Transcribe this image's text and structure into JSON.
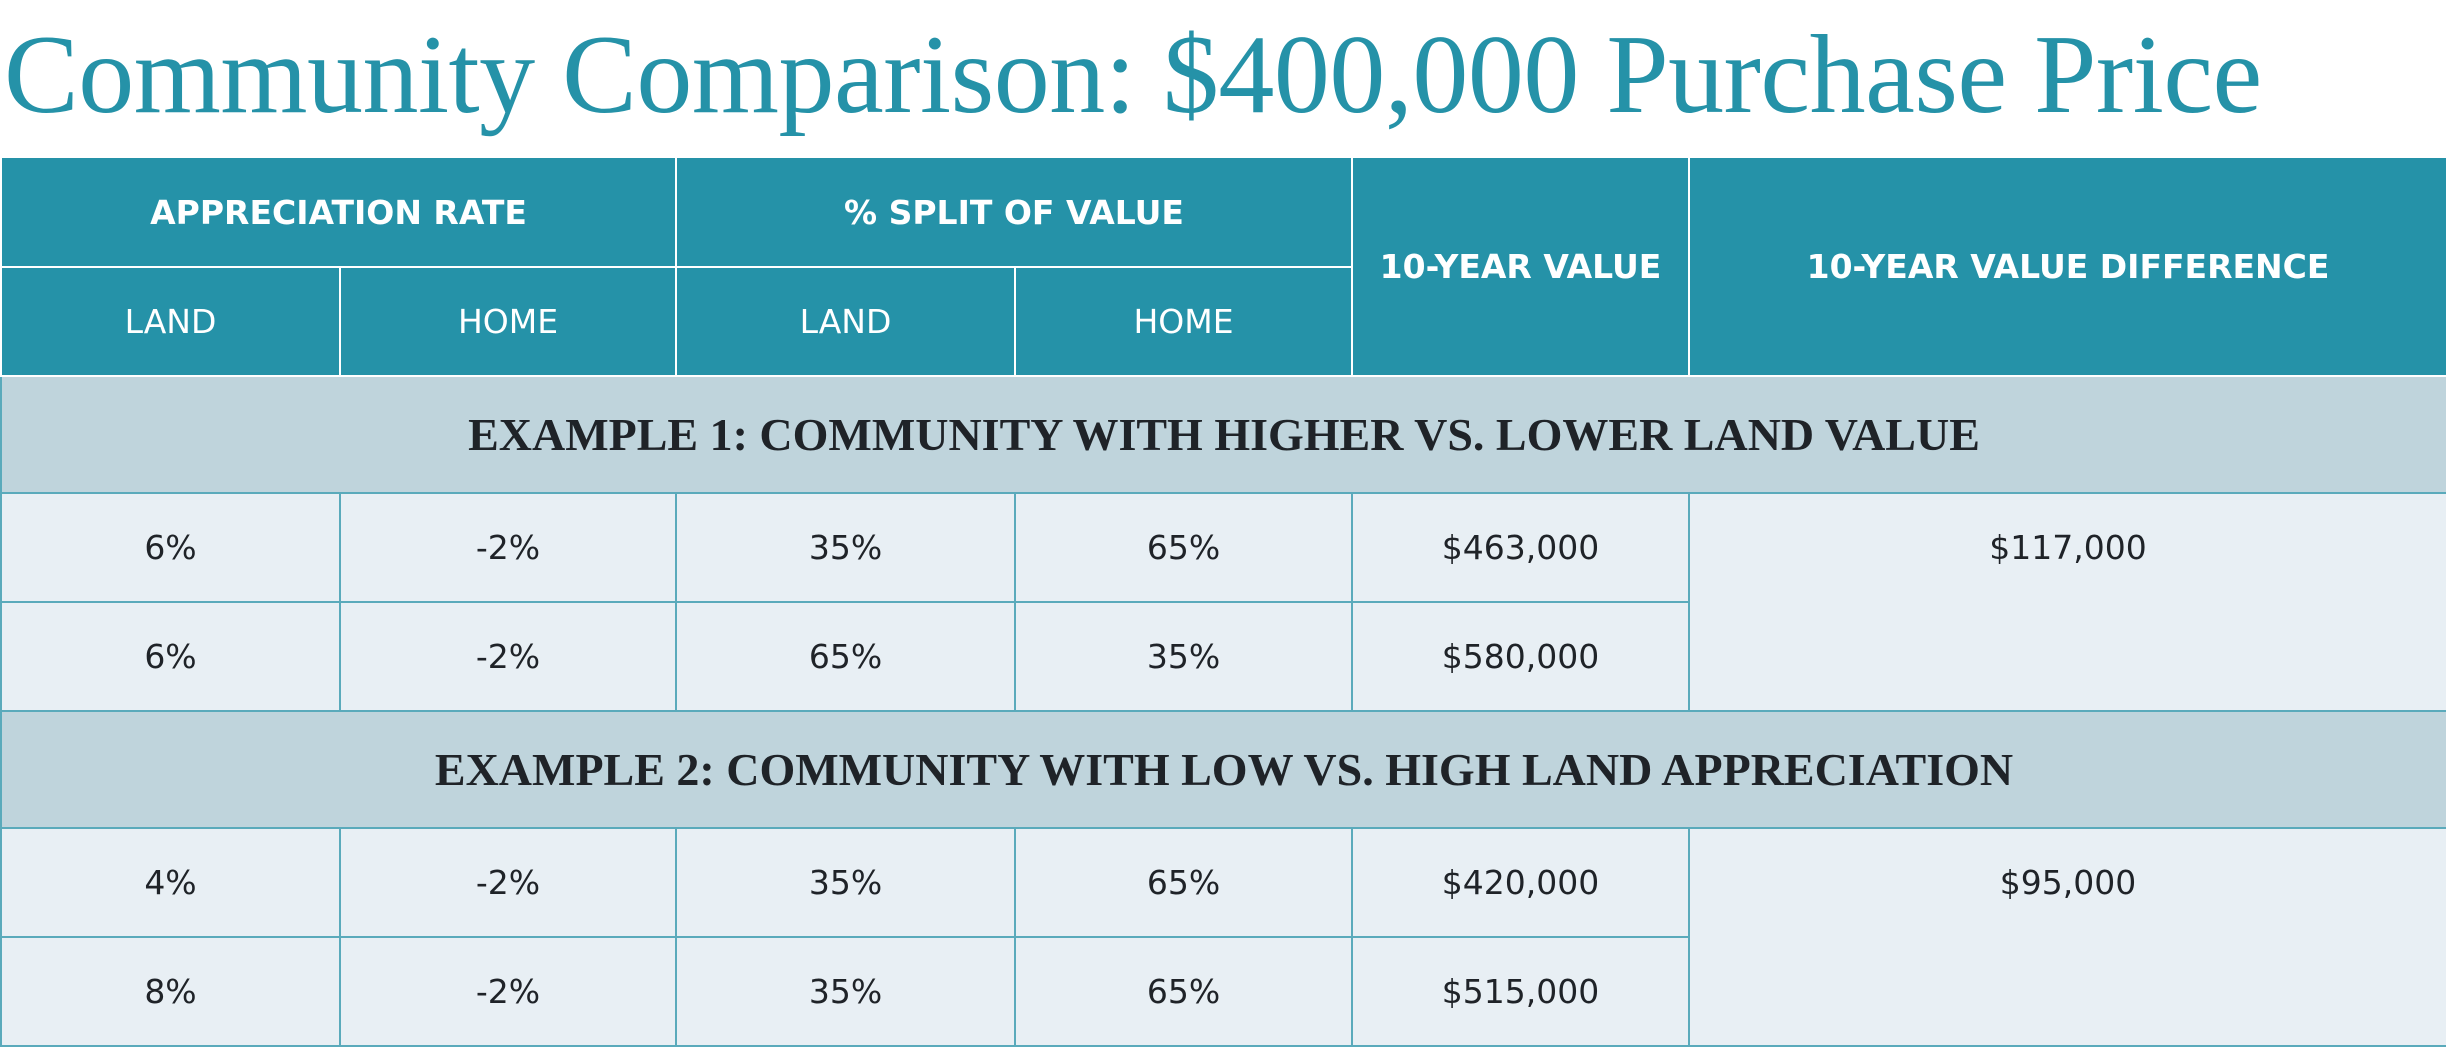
{
  "header": {
    "title": "Community Comparison: $400,000 Purchase Price"
  },
  "table": {
    "headers": {
      "appreciation_rate": "APPRECIATION RATE",
      "split_of_value": "% SPLIT OF VALUE",
      "ten_year_value": "10-YEAR VALUE",
      "difference": "10-YEAR VALUE DIFFERENCE",
      "sub": [
        "LAND",
        "HOME",
        "LAND",
        "HOME"
      ]
    },
    "sections": [
      {
        "title": "EXAMPLE 1: COMMUNITY WITH HIGHER VS. LOWER LAND VALUE",
        "rows": [
          [
            "6%",
            "-2%",
            "35%",
            "65%",
            "$463,000"
          ],
          [
            "6%",
            "-2%",
            "65%",
            "35%",
            "$580,000"
          ]
        ],
        "difference": "$117,000"
      },
      {
        "title": "EXAMPLE 2: COMMUNITY WITH LOW VS. HIGH LAND APPRECIATION",
        "rows": [
          [
            "4%",
            "-2%",
            "35%",
            "65%",
            "$420,000"
          ],
          [
            "8%",
            "-2%",
            "35%",
            "65%",
            "$515,000"
          ]
        ],
        "difference": "$95,000"
      }
    ]
  }
}
